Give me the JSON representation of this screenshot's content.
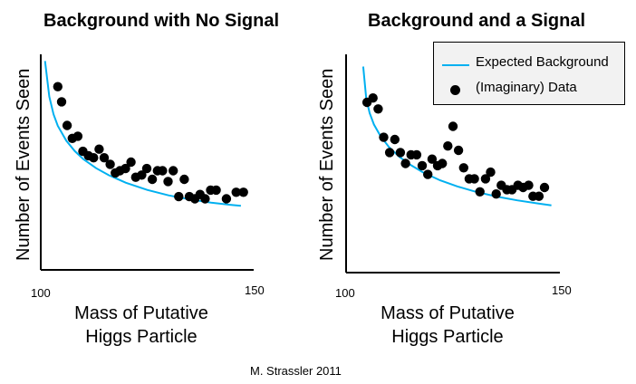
{
  "credit": "M. Strassler 2011",
  "colors": {
    "background_curve": "#00b0f0",
    "data_points": "#000000",
    "legend_bg": "#f2f2f2"
  },
  "legend": {
    "entries": [
      "Expected Background",
      "(Imaginary) Data"
    ]
  },
  "chart_data": [
    {
      "type": "scatter",
      "title": "Background with No Signal",
      "xlabel": "Mass of Putative Higgs Particle",
      "xlabel_lines": [
        "Mass of Putative",
        "Higgs Particle"
      ],
      "ylabel": "Number of Events Seen",
      "xlim": [
        100,
        150
      ],
      "x_ticks": [
        "100",
        "150"
      ],
      "ylim": [
        0,
        100
      ],
      "grid": false,
      "series": [
        {
          "kind": "line",
          "curve_x": [
            101,
            102,
            103,
            104,
            106,
            108,
            110,
            113,
            116,
            120,
            125,
            130,
            135,
            140,
            145,
            147
          ],
          "curve_y": [
            96.9,
            80.4,
            72.2,
            66.8,
            59.9,
            55.1,
            51.4,
            47.2,
            43.9,
            40.4,
            37.1,
            34.6,
            32.7,
            31.2,
            30.1,
            29.7
          ]
        },
        {
          "kind": "points",
          "x": [
            104.0,
            104.9,
            106.2,
            107.4,
            108.7,
            109.9,
            111.2,
            112.4,
            113.7,
            114.9,
            116.3,
            117.5,
            118.6,
            119.9,
            121.2,
            122.3,
            123.7,
            124.9,
            126.2,
            127.4,
            128.6,
            129.9,
            131.1,
            132.4,
            133.7,
            134.9,
            136.2,
            137.4,
            138.6,
            139.9,
            141.2,
            143.6,
            145.9,
            147.6
          ],
          "y": [
            85,
            78,
            67,
            61,
            62,
            55,
            53,
            52,
            56,
            52,
            49,
            45,
            46,
            47,
            50,
            43,
            44,
            47,
            42,
            46,
            46,
            41,
            46,
            34,
            42,
            34,
            33,
            35,
            33,
            37,
            37,
            33,
            36,
            36
          ]
        }
      ]
    },
    {
      "type": "scatter",
      "title": "Background and a Signal",
      "xlabel": "Mass of Putative Higgs Particle",
      "xlabel_lines": [
        "Mass of Putative",
        "Higgs Particle"
      ],
      "ylabel": "Number of Events Seen",
      "xlim": [
        100,
        150
      ],
      "x_ticks": [
        "100",
        "150"
      ],
      "ylim": [
        0,
        100
      ],
      "grid": false,
      "series": [
        {
          "kind": "line",
          "curve_x": [
            104,
            104.7,
            105.5,
            106.5,
            108,
            110,
            112.5,
            115,
            118,
            122,
            126,
            130,
            135,
            140,
            145,
            148
          ],
          "curve_y": [
            94.4,
            79.9,
            73.1,
            67.9,
            62.7,
            57.6,
            53.0,
            49.4,
            45.9,
            42.3,
            39.5,
            37.2,
            34.9,
            33.1,
            31.6,
            30.8
          ]
        },
        {
          "kind": "points",
          "x": [
            104.9,
            106.3,
            107.5,
            108.8,
            110.2,
            111.4,
            112.7,
            113.9,
            115.2,
            116.5,
            117.8,
            119.1,
            120.1,
            121.4,
            122.5,
            123.8,
            125.0,
            126.3,
            127.5,
            128.8,
            130.0,
            131.3,
            132.6,
            133.8,
            135.1,
            136.3,
            137.6,
            138.8,
            140.2,
            141.4,
            142.7,
            143.7,
            145.1,
            146.4
          ],
          "y": [
            78,
            80,
            75,
            62,
            55,
            61,
            55,
            50,
            54,
            54,
            49,
            45,
            52,
            49,
            50,
            58,
            67,
            56,
            48,
            43,
            43,
            37,
            43,
            46,
            36,
            40,
            38,
            38,
            40,
            39,
            40,
            35,
            35,
            39
          ]
        }
      ]
    }
  ]
}
